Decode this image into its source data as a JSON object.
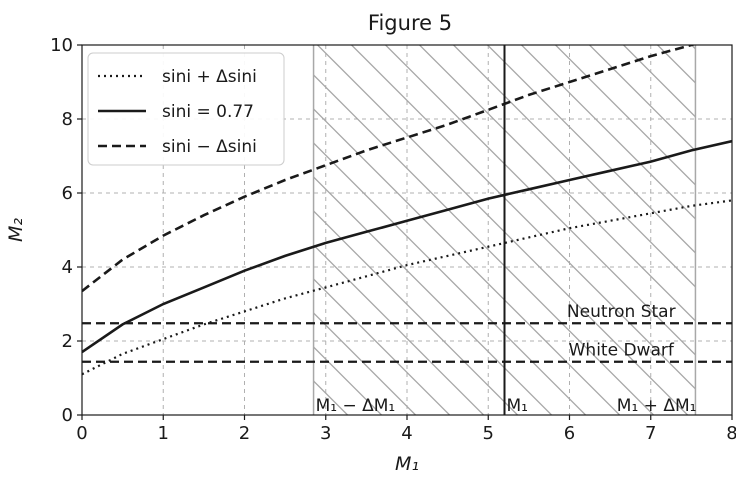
{
  "chart_data": {
    "type": "line",
    "title": "Figure 5",
    "xlabel": "M₁",
    "ylabel": "M₂",
    "xlim": [
      0,
      8
    ],
    "ylim": [
      0,
      10
    ],
    "xticks": [
      0,
      1,
      2,
      3,
      4,
      5,
      6,
      7,
      8
    ],
    "yticks": [
      0,
      2,
      4,
      6,
      8,
      10
    ],
    "grid": true,
    "legend_position": "top-left",
    "series": [
      {
        "name": "sini + Δsini",
        "style": "dotted",
        "x": [
          0,
          0.5,
          1,
          1.5,
          2,
          2.5,
          3,
          3.5,
          4,
          4.5,
          5,
          5.5,
          6,
          6.5,
          7,
          7.5,
          8
        ],
        "y": [
          1.1,
          1.65,
          2.05,
          2.45,
          2.8,
          3.15,
          3.45,
          3.75,
          4.05,
          4.3,
          4.55,
          4.8,
          5.05,
          5.25,
          5.45,
          5.65,
          5.8
        ]
      },
      {
        "name": "sini = 0.77",
        "style": "solid",
        "x": [
          0,
          0.5,
          1,
          1.5,
          2,
          2.5,
          3,
          3.5,
          4,
          4.5,
          5,
          5.5,
          6,
          6.5,
          7,
          7.5,
          8
        ],
        "y": [
          1.7,
          2.45,
          3.0,
          3.45,
          3.9,
          4.3,
          4.65,
          4.95,
          5.25,
          5.55,
          5.85,
          6.1,
          6.35,
          6.6,
          6.85,
          7.15,
          7.4
        ]
      },
      {
        "name": "sini − Δsini",
        "style": "dashed",
        "x": [
          0,
          0.5,
          1,
          1.5,
          2,
          2.5,
          3,
          3.5,
          4,
          4.5,
          5,
          5.5,
          6,
          6.5,
          7,
          7.5,
          8
        ],
        "y": [
          3.35,
          4.2,
          4.85,
          5.4,
          5.9,
          6.35,
          6.75,
          7.15,
          7.5,
          7.85,
          8.25,
          8.65,
          9.0,
          9.35,
          9.7,
          10.0,
          10.3
        ]
      }
    ],
    "reference_lines": [
      {
        "orientation": "horizontal",
        "value": 2.48,
        "style": "dashed",
        "label": "Neutron Star"
      },
      {
        "orientation": "horizontal",
        "value": 1.44,
        "style": "dashed",
        "label": "White Dwarf"
      },
      {
        "orientation": "vertical",
        "value": 5.2,
        "style": "solid",
        "label": "M₁"
      }
    ],
    "hatched_region": {
      "x_range": [
        2.85,
        7.55
      ],
      "lower_label": "M₁ − ΔM₁",
      "upper_label": "M₁ + ΔM₁"
    },
    "colors": {
      "curves": "#1a1a1a",
      "grid": "#b0b0b0",
      "hatch": "#a8a8a8"
    }
  }
}
